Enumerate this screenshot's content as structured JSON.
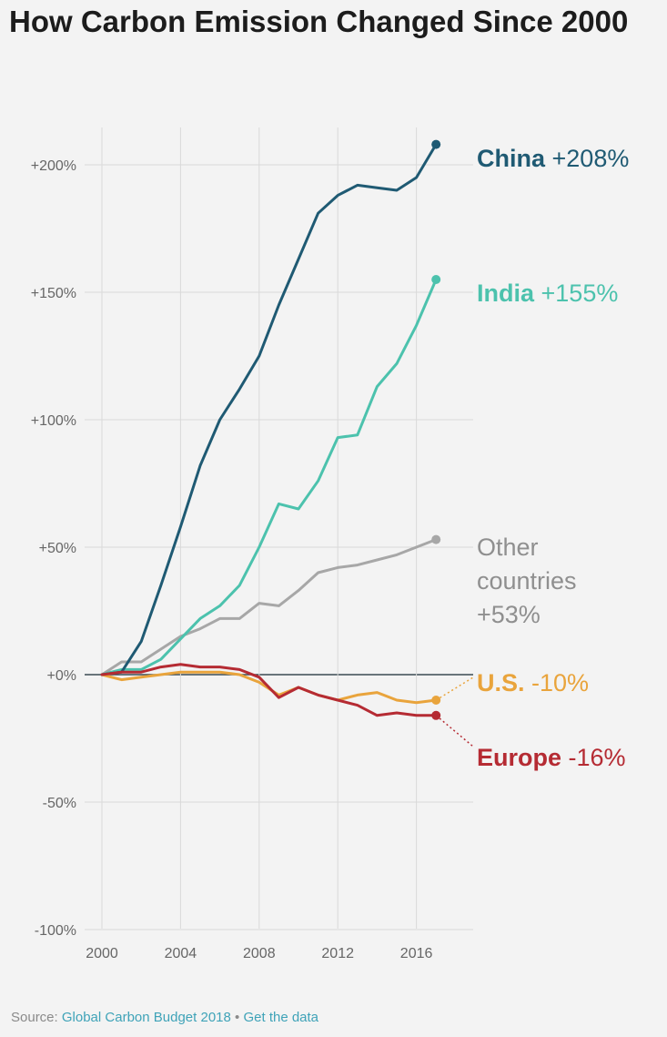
{
  "chart_data": {
    "type": "line",
    "title": "How Carbon Emission Changed Since 2000",
    "xlabel": "",
    "ylabel": "",
    "xlim": [
      2000,
      2017
    ],
    "ylim": [
      -100,
      220
    ],
    "x_ticks": [
      2000,
      2004,
      2008,
      2012,
      2016
    ],
    "x_tick_labels": [
      "2000",
      "2004",
      "2008",
      "2012",
      "2016"
    ],
    "y_ticks": [
      200,
      150,
      100,
      50,
      0,
      -50,
      -100
    ],
    "y_tick_labels": [
      "+200%",
      "+150%",
      "+100%",
      "+50%",
      "+0%",
      "-50%",
      "-100%"
    ],
    "x": [
      2000,
      2001,
      2002,
      2003,
      2004,
      2005,
      2006,
      2007,
      2008,
      2009,
      2010,
      2011,
      2012,
      2013,
      2014,
      2015,
      2016,
      2017
    ],
    "series": [
      {
        "name": "China",
        "change": "+208%",
        "color": "#1f5a73",
        "values": [
          0,
          1,
          13,
          35,
          58,
          82,
          100,
          112,
          125,
          145,
          163,
          181,
          188,
          192,
          191,
          190,
          195,
          208
        ]
      },
      {
        "name": "India",
        "change": "+155%",
        "color": "#4cc2ad",
        "values": [
          0,
          2,
          2,
          6,
          14,
          22,
          27,
          35,
          50,
          67,
          65,
          76,
          93,
          94,
          113,
          122,
          137,
          155
        ]
      },
      {
        "name": "Other countries",
        "label_lines": [
          "Other",
          "countries",
          "+53%"
        ],
        "change": "+53%",
        "color": "#a7a7a7",
        "values": [
          0,
          5,
          5,
          10,
          15,
          18,
          22,
          22,
          28,
          27,
          33,
          40,
          42,
          43,
          45,
          47,
          50,
          53
        ]
      },
      {
        "name": "U.S.",
        "change": "-10%",
        "color": "#e9a43c",
        "values": [
          0,
          -2,
          -1,
          0,
          1,
          1,
          1,
          0,
          -3,
          -8,
          -5,
          -8,
          -10,
          -8,
          -7,
          -10,
          -11,
          -10
        ]
      },
      {
        "name": "Europe",
        "change": "-16%",
        "color": "#b52b33",
        "values": [
          0,
          1,
          1,
          3,
          4,
          3,
          3,
          2,
          -1,
          -9,
          -5,
          -8,
          -10,
          -12,
          -16,
          -15,
          -16,
          -16
        ]
      }
    ]
  },
  "footer": {
    "source_prefix": "Source: ",
    "source_link": "Global Carbon Budget 2018",
    "separator": "•",
    "data_link": "Get the data"
  }
}
